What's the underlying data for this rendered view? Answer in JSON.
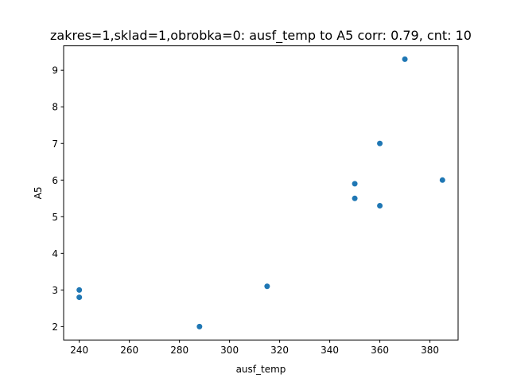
{
  "chart_data": {
    "type": "scatter",
    "title": "zakres=1,sklad=1,obrobka=0: ausf_temp to A5 corr: 0.79, cnt: 10",
    "xlabel": "ausf_temp",
    "ylabel": "A5",
    "xlim": [
      233.75,
      391.25
    ],
    "ylim": [
      1.635,
      9.665
    ],
    "xticks": [
      240,
      260,
      280,
      300,
      320,
      340,
      360,
      380
    ],
    "yticks": [
      2,
      3,
      4,
      5,
      6,
      7,
      8,
      9
    ],
    "grid": false,
    "color": "#1f77b4",
    "points": [
      {
        "x": 240,
        "y": 3.0
      },
      {
        "x": 240,
        "y": 2.8
      },
      {
        "x": 288,
        "y": 2.0
      },
      {
        "x": 315,
        "y": 3.1
      },
      {
        "x": 350,
        "y": 5.9
      },
      {
        "x": 350,
        "y": 5.5
      },
      {
        "x": 360,
        "y": 7.0
      },
      {
        "x": 360,
        "y": 5.3
      },
      {
        "x": 370,
        "y": 9.3
      },
      {
        "x": 385,
        "y": 6.0
      }
    ]
  }
}
